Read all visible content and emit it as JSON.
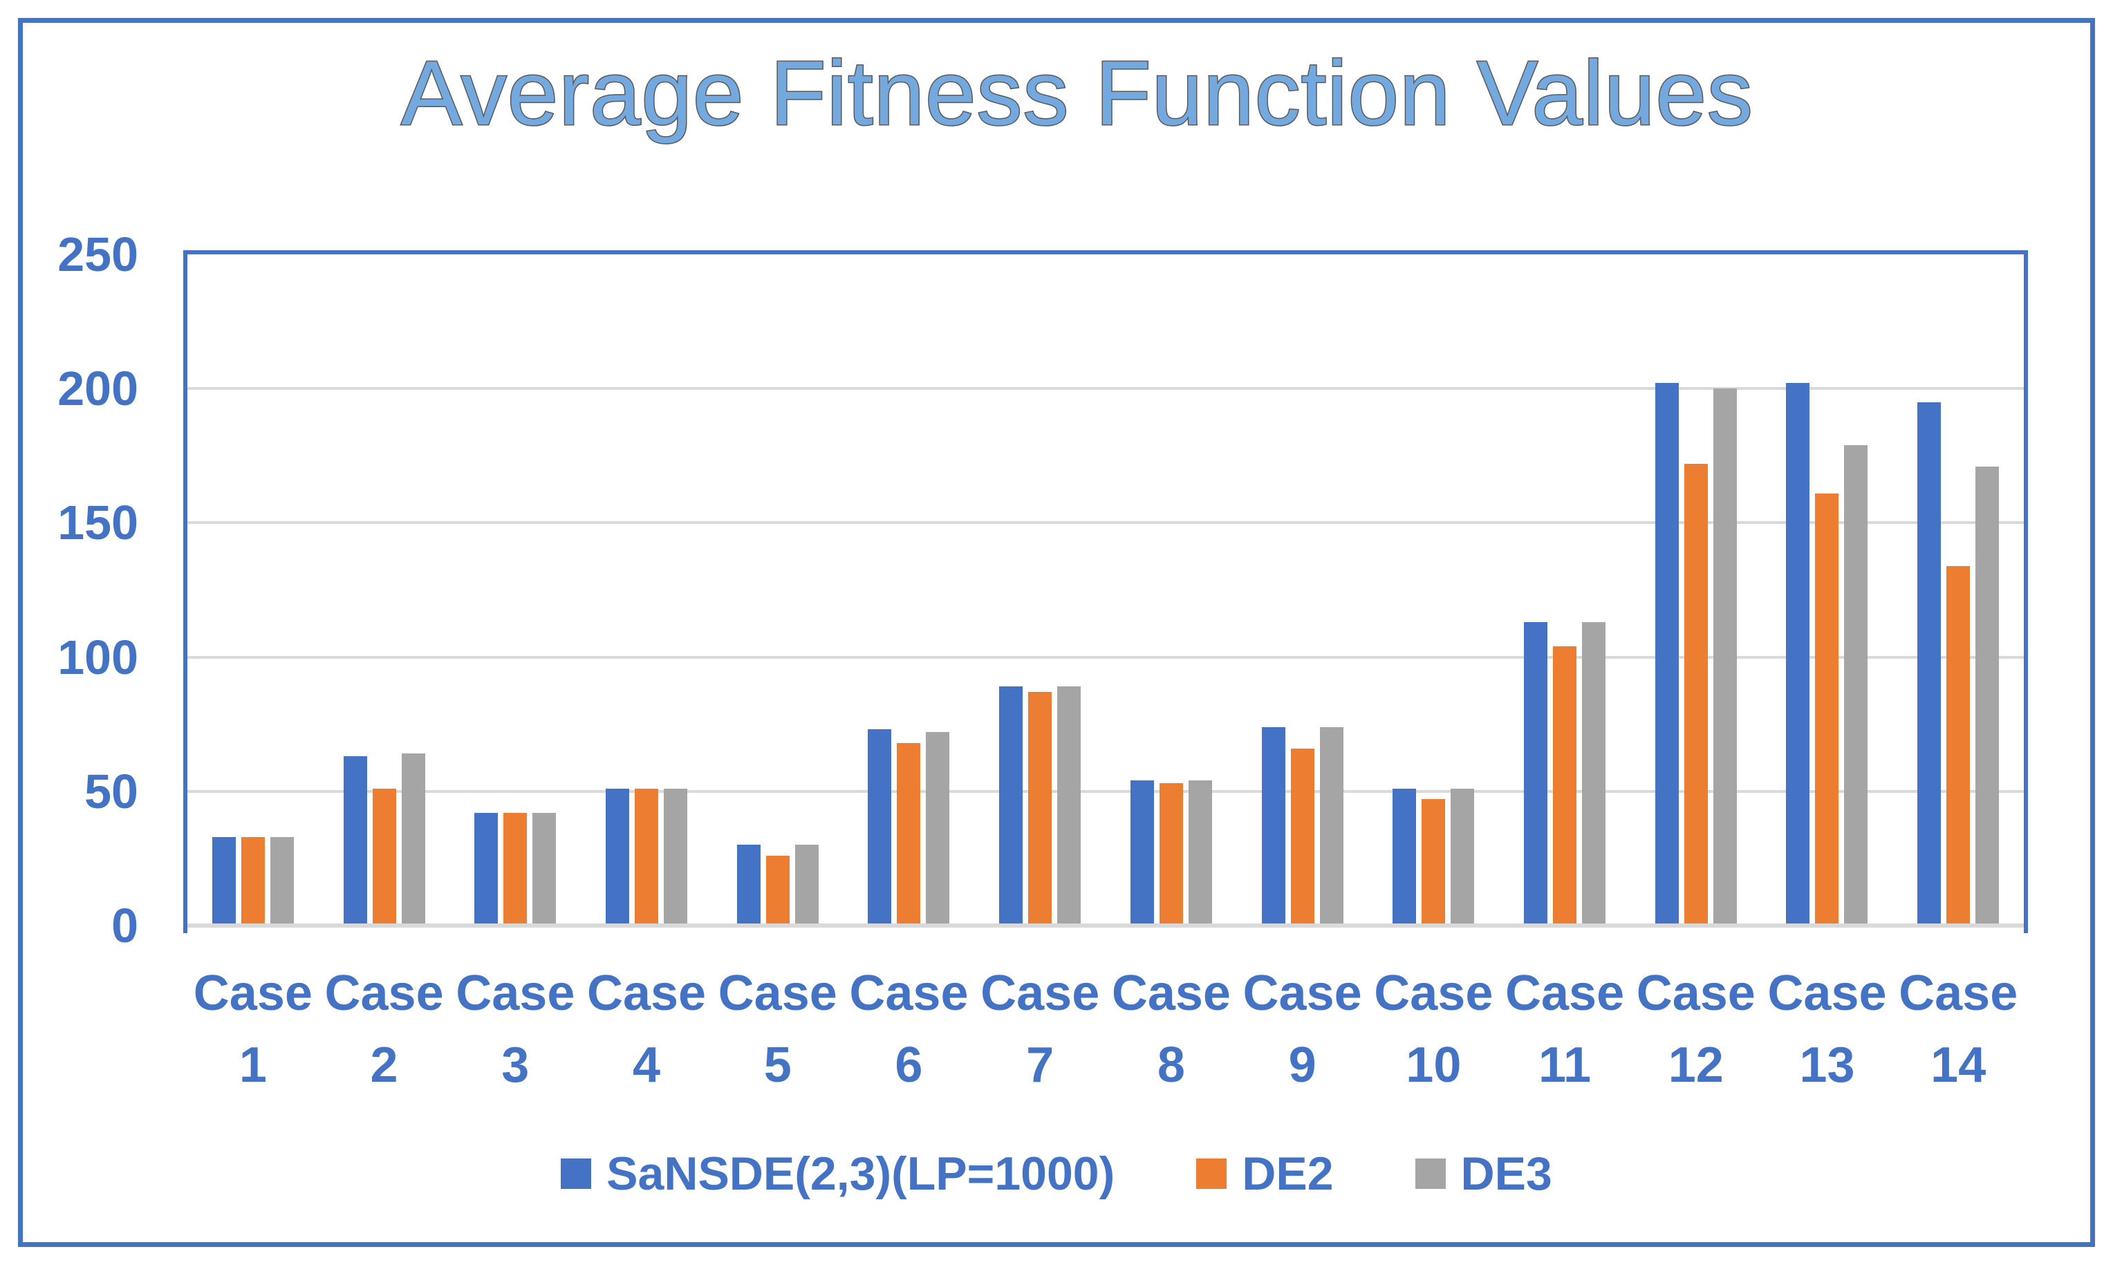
{
  "title": "Average Fitness Function Values",
  "colors": {
    "accent": "#4472C4",
    "grid": "#D9D9D9",
    "title_fill": "#74A9DF",
    "title_outline": "#595959",
    "series_blue": "#4472C4",
    "series_orange": "#ED7D31",
    "series_gray": "#A5A5A5",
    "background": "#FFFFFF"
  },
  "chart_data": {
    "type": "bar",
    "title": "Average Fitness Function Values",
    "xlabel": "",
    "ylabel": "",
    "categories": [
      "Case 1",
      "Case 2",
      "Case 3",
      "Case 4",
      "Case 5",
      "Case 6",
      "Case 7",
      "Case 8",
      "Case 9",
      "Case 10",
      "Case 11",
      "Case 12",
      "Case 13",
      "Case 14"
    ],
    "series": [
      {
        "name": "SaNSDE(2,3)(LP=1000)",
        "color": "#4472C4",
        "values": [
          33,
          63,
          42,
          51,
          30,
          73,
          89,
          54,
          74,
          51,
          113,
          202,
          202,
          195
        ]
      },
      {
        "name": "DE2",
        "color": "#ED7D31",
        "values": [
          33,
          51,
          42,
          51,
          26,
          68,
          87,
          53,
          66,
          47,
          104,
          172,
          161,
          134
        ]
      },
      {
        "name": "DE3",
        "color": "#A5A5A5",
        "values": [
          33,
          64,
          42,
          51,
          30,
          72,
          89,
          54,
          74,
          51,
          113,
          200,
          179,
          171
        ]
      }
    ],
    "y_ticks": [
      0,
      50,
      100,
      150,
      200,
      250
    ],
    "ylim": [
      0,
      250
    ],
    "grid": true,
    "gridline_values": [
      50,
      100,
      150,
      200
    ],
    "legend_position": "bottom"
  }
}
